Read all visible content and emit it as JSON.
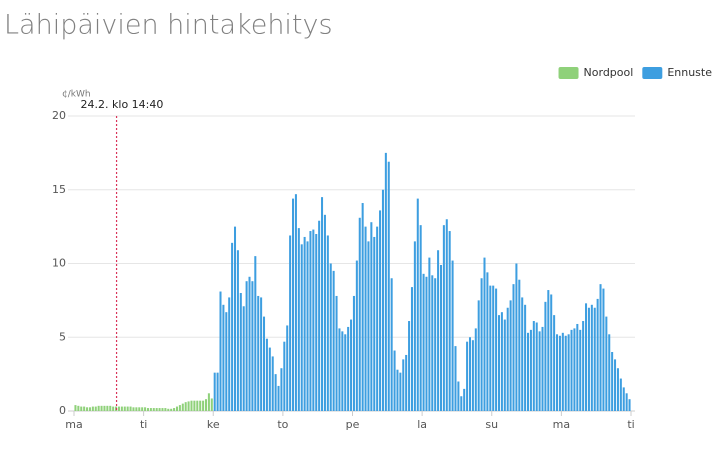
{
  "chart_data": {
    "type": "bar",
    "title": "Lähipäivien hintakehitys",
    "ylabel": "¢/kWh",
    "xlim": [
      0,
      192
    ],
    "xticks": [
      {
        "value": 0,
        "label": "ma"
      },
      {
        "value": 24,
        "label": "ti"
      },
      {
        "value": 48,
        "label": "ke"
      },
      {
        "value": 72,
        "label": "to"
      },
      {
        "value": 96,
        "label": "pe"
      },
      {
        "value": 120,
        "label": "la"
      },
      {
        "value": 144,
        "label": "su"
      },
      {
        "value": 168,
        "label": "ma"
      },
      {
        "value": 192,
        "label": "ti"
      }
    ],
    "ylim": [
      0,
      20
    ],
    "yticks": [
      0,
      5,
      10,
      15,
      20
    ],
    "grid": true,
    "legend": "top-right",
    "annotations": [
      {
        "label": "24.2. klo 14:40",
        "x": 14.67,
        "color": "#d9345a"
      }
    ],
    "series": [
      {
        "name": "Nordpool",
        "color": "#8fd17a",
        "x": [
          0,
          1,
          2,
          3,
          4,
          5,
          6,
          7,
          8,
          9,
          10,
          11,
          12,
          13,
          14,
          15,
          16,
          17,
          18,
          19,
          20,
          21,
          22,
          23,
          24,
          25,
          26,
          27,
          28,
          29,
          30,
          31,
          32,
          33,
          34,
          35,
          36,
          37,
          38,
          39,
          40,
          41,
          42,
          43,
          44,
          45,
          46,
          47
        ],
        "values": [
          0.4,
          0.35,
          0.3,
          0.3,
          0.25,
          0.25,
          0.3,
          0.3,
          0.35,
          0.35,
          0.35,
          0.35,
          0.35,
          0.3,
          0.3,
          0.3,
          0.3,
          0.3,
          0.3,
          0.3,
          0.25,
          0.25,
          0.25,
          0.25,
          0.25,
          0.2,
          0.2,
          0.2,
          0.2,
          0.2,
          0.2,
          0.2,
          0.15,
          0.15,
          0.2,
          0.3,
          0.4,
          0.5,
          0.6,
          0.65,
          0.7,
          0.7,
          0.7,
          0.7,
          0.7,
          0.8,
          1.2,
          0.85
        ]
      },
      {
        "name": "Ennuste",
        "color": "#3d9ee0",
        "x": [
          48,
          49,
          50,
          51,
          52,
          53,
          54,
          55,
          56,
          57,
          58,
          59,
          60,
          61,
          62,
          63,
          64,
          65,
          66,
          67,
          68,
          69,
          70,
          71,
          72,
          73,
          74,
          75,
          76,
          77,
          78,
          79,
          80,
          81,
          82,
          83,
          84,
          85,
          86,
          87,
          88,
          89,
          90,
          91,
          92,
          93,
          94,
          95,
          96,
          97,
          98,
          99,
          100,
          101,
          102,
          103,
          104,
          105,
          106,
          107,
          108,
          109,
          110,
          111,
          112,
          113,
          114,
          115,
          116,
          117,
          118,
          119,
          120,
          121,
          122,
          123,
          124,
          125,
          126,
          127,
          128,
          129,
          130,
          131,
          132,
          133,
          134,
          135,
          136,
          137,
          138,
          139,
          140,
          141,
          142,
          143,
          144,
          145,
          146,
          147,
          148,
          149,
          150,
          151,
          152,
          153,
          154,
          155,
          156,
          157,
          158,
          159,
          160,
          161,
          162,
          163,
          164,
          165,
          166,
          167,
          168,
          169,
          170,
          171,
          172,
          173,
          174,
          175,
          176,
          177,
          178,
          179,
          180,
          181,
          182,
          183,
          184,
          185,
          186,
          187,
          188,
          189,
          190,
          191
        ],
        "values": [
          2.6,
          2.6,
          8.1,
          7.2,
          6.7,
          7.7,
          11.4,
          12.5,
          10.9,
          8.0,
          7.1,
          8.8,
          9.1,
          8.8,
          10.5,
          7.8,
          7.7,
          6.4,
          4.9,
          4.3,
          3.7,
          2.5,
          1.7,
          2.9,
          4.7,
          5.8,
          11.9,
          14.4,
          14.7,
          12.4,
          11.3,
          11.8,
          11.5,
          12.2,
          12.3,
          12.0,
          12.9,
          14.5,
          13.3,
          11.9,
          10.0,
          9.5,
          7.8,
          5.6,
          5.4,
          5.2,
          5.7,
          6.2,
          7.8,
          10.2,
          13.1,
          14.1,
          12.5,
          11.5,
          12.8,
          11.8,
          12.5,
          13.6,
          15.0,
          17.5,
          16.9,
          9.0,
          4.1,
          2.8,
          2.6,
          3.5,
          3.8,
          6.1,
          8.4,
          11.5,
          14.4,
          12.6,
          9.3,
          9.1,
          10.4,
          9.2,
          9.0,
          10.9,
          9.9,
          12.6,
          13.0,
          12.2,
          10.2,
          4.4,
          2.0,
          1.0,
          1.5,
          4.7,
          5.0,
          4.8,
          5.6,
          7.5,
          9.0,
          10.4,
          9.4,
          8.5,
          8.5,
          8.3,
          6.5,
          6.7,
          6.2,
          7.0,
          7.5,
          8.6,
          10.0,
          8.9,
          7.7,
          7.2,
          5.3,
          5.5,
          6.1,
          6.0,
          5.4,
          5.7,
          7.4,
          8.2,
          7.9,
          6.5,
          5.2,
          5.1,
          5.3,
          5.1,
          5.2,
          5.5,
          5.6,
          5.9,
          5.5,
          6.1,
          7.3,
          7.0,
          7.2,
          7.0,
          7.6,
          8.6,
          8.3,
          6.4,
          5.2,
          4.0,
          3.5,
          2.9,
          2.2,
          1.6,
          1.2,
          0.8
        ]
      }
    ]
  }
}
